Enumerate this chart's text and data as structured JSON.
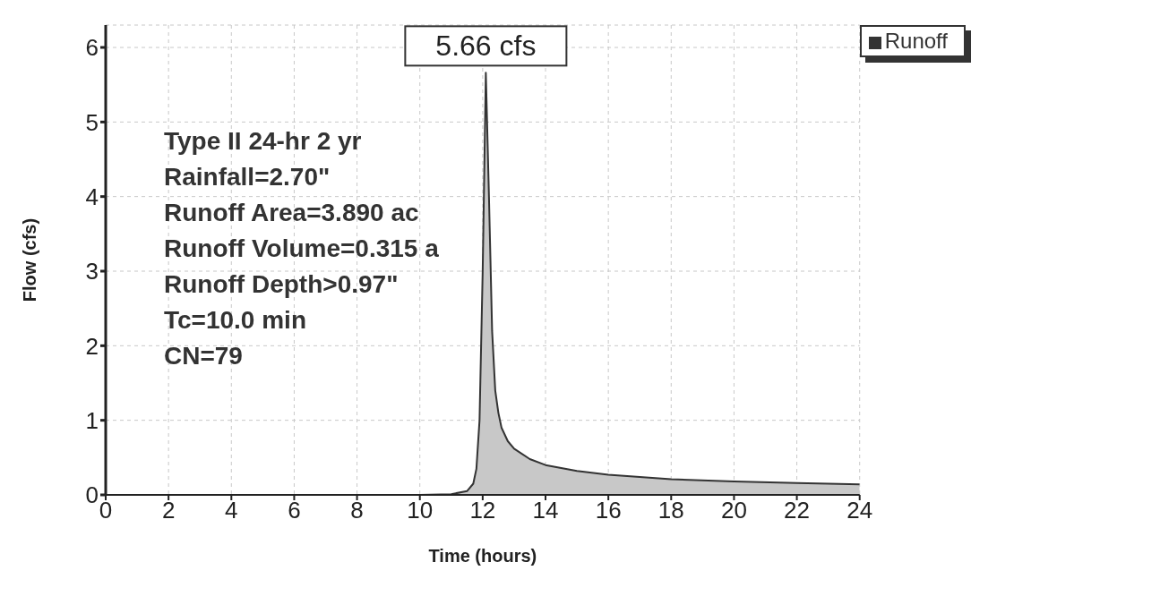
{
  "chart_data": {
    "type": "area",
    "xlabel": "Time  (hours)",
    "ylabel": "Flow  (cfs)",
    "x": [
      0,
      2,
      4,
      6,
      8,
      10,
      11,
      11.5,
      11.7,
      11.8,
      11.9,
      12.0,
      12.1,
      12.2,
      12.3,
      12.4,
      12.5,
      12.6,
      12.8,
      13.0,
      13.5,
      14,
      15,
      16,
      17,
      18,
      20,
      22,
      24
    ],
    "series": [
      {
        "name": "Runoff",
        "color": "#c8c8c8",
        "values": [
          0,
          0,
          0,
          0,
          0,
          0,
          0.01,
          0.05,
          0.15,
          0.35,
          1.0,
          3.0,
          5.66,
          4.0,
          2.2,
          1.4,
          1.1,
          0.9,
          0.72,
          0.62,
          0.48,
          0.4,
          0.32,
          0.27,
          0.24,
          0.21,
          0.18,
          0.16,
          0.14
        ]
      }
    ],
    "xlim": [
      0,
      24
    ],
    "xticks": [
      0,
      2,
      4,
      6,
      8,
      10,
      12,
      14,
      16,
      18,
      20,
      22,
      24
    ],
    "ylim": [
      0,
      6.3
    ],
    "yticks": [
      0,
      1,
      2,
      3,
      4,
      5,
      6
    ],
    "grid": true,
    "legend": "top right",
    "marker": "none",
    "annotations": [
      {
        "text": "5.66 cfs",
        "x": 12.1,
        "y": 5.66
      },
      "Type II 24-hr 2 yr",
      "Rainfall=2.70\"",
      "Runoff Area=3.890 ac",
      "Runoff Volume=0.315 a",
      "Runoff Depth>0.97\"",
      "Tc=10.0 min",
      "CN=79"
    ]
  }
}
